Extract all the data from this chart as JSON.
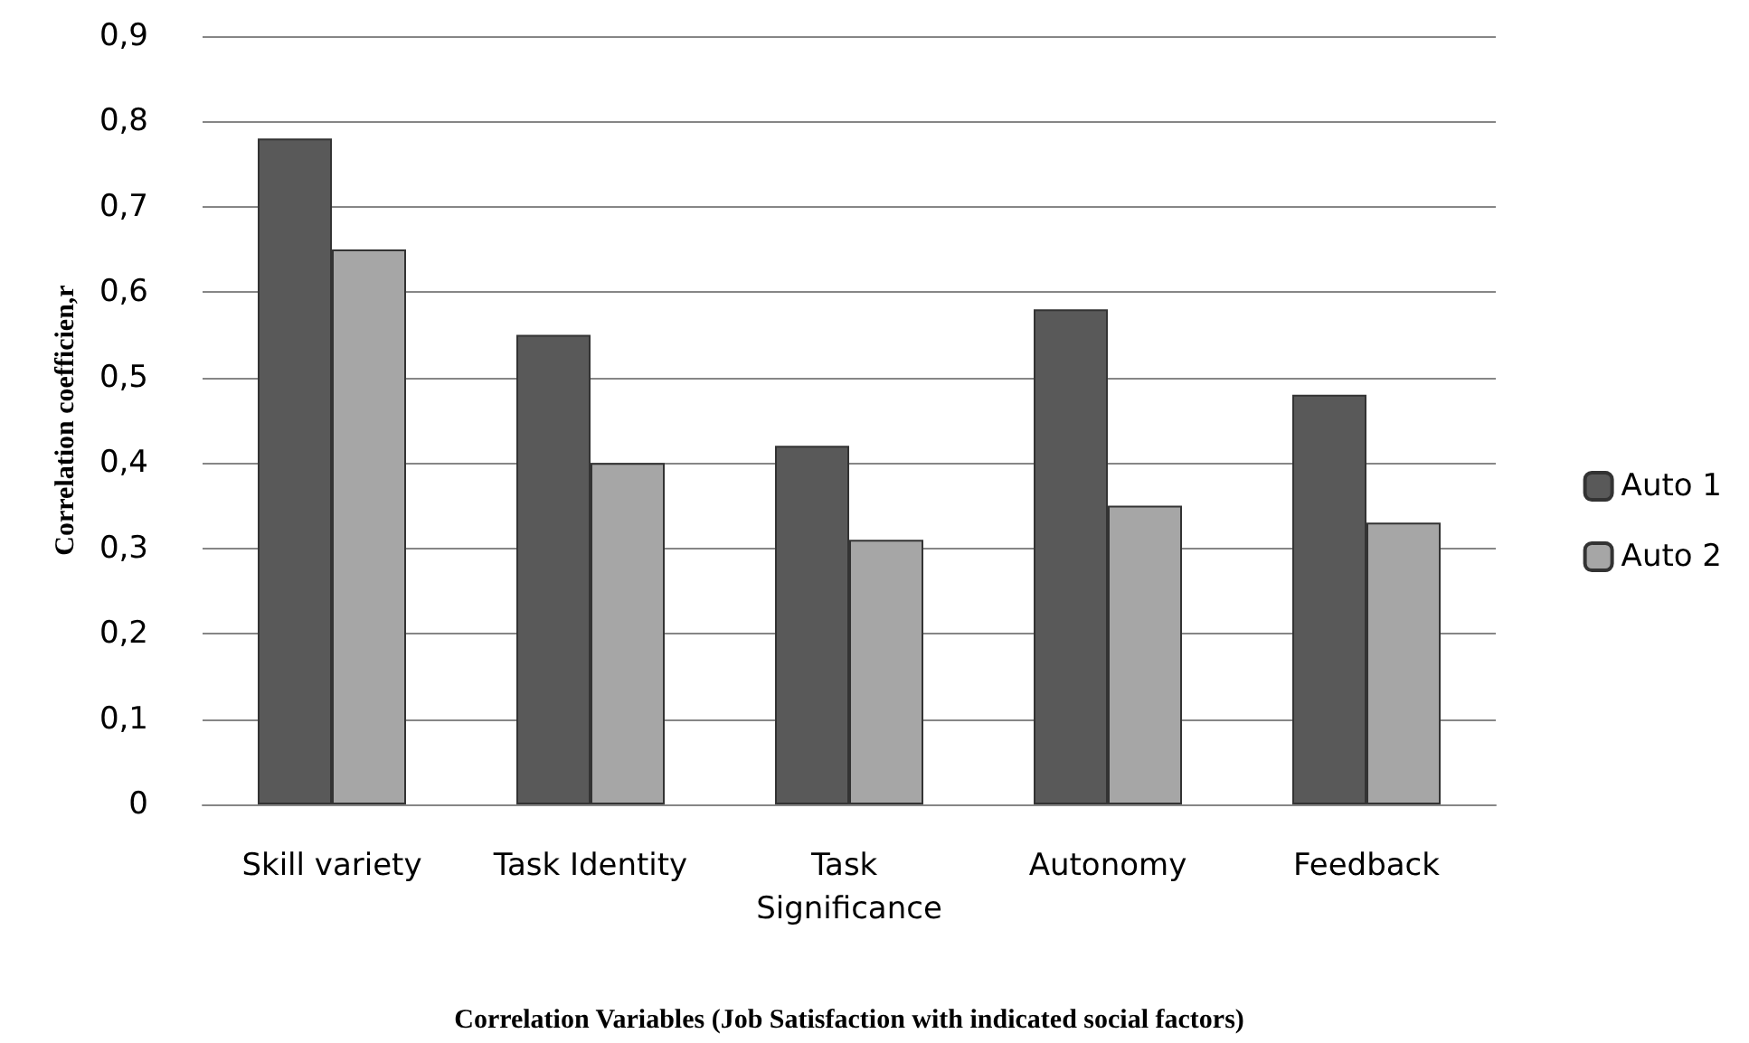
{
  "chart_data": {
    "type": "bar",
    "xlabel": "Correlation Variables (Job Satisfaction with indicated social factors)",
    "ylabel": "Correlation coefficien,r",
    "categories": [
      "Skill variety",
      "Task Identity",
      "Task Significance",
      "Autonomy",
      "Feedback"
    ],
    "series": [
      {
        "name": "Auto 1",
        "color": "#595959",
        "values": [
          0.78,
          0.55,
          0.42,
          0.58,
          0.48
        ]
      },
      {
        "name": "Auto 2",
        "color": "#a6a6a6",
        "values": [
          0.65,
          0.4,
          0.31,
          0.35,
          0.33
        ]
      }
    ],
    "ylim": [
      0,
      0.9
    ],
    "yticks": [
      0,
      {
        "value": 0.1,
        "label": "0,1"
      },
      {
        "value": 0.2,
        "label": "0,2"
      },
      {
        "value": 0.3,
        "label": "0,3"
      },
      {
        "value": 0.4,
        "label": "0,4"
      },
      {
        "value": 0.5,
        "label": "0,5"
      },
      {
        "value": 0.6,
        "label": "0,6"
      },
      {
        "value": 0.7,
        "label": "0,7"
      },
      {
        "value": 0.8,
        "label": "0,8"
      },
      {
        "value": 0.9,
        "label": "0,9"
      }
    ],
    "grid": "y",
    "legend": "right"
  }
}
